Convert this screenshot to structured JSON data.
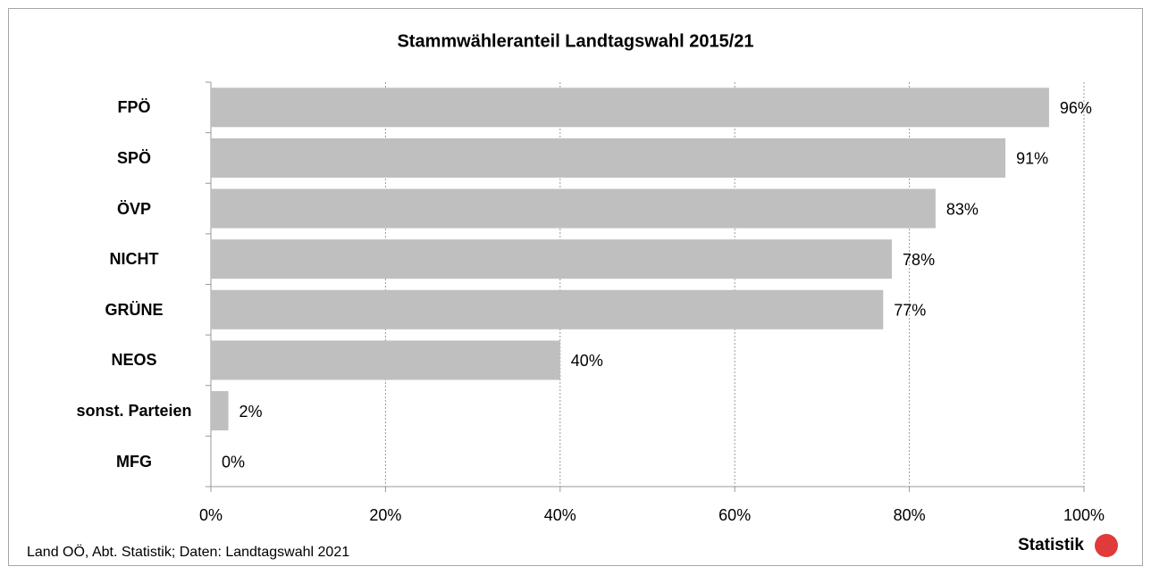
{
  "chart_data": {
    "type": "bar",
    "orientation": "horizontal",
    "title": "Stammwähleranteil Landtagswahl 2015/21",
    "categories": [
      "FPÖ",
      "SPÖ",
      "ÖVP",
      "NICHT",
      "GRÜNE",
      "NEOS",
      "sonst. Parteien",
      "MFG"
    ],
    "values": [
      96,
      91,
      83,
      78,
      77,
      40,
      2,
      0
    ],
    "value_labels": [
      "96%",
      "91%",
      "83%",
      "78%",
      "77%",
      "40%",
      "2%",
      "0%"
    ],
    "color": "#bfbfbf",
    "xlim": [
      0,
      100
    ],
    "xticks": [
      {
        "value": 0,
        "label": "0%"
      },
      {
        "value": 20,
        "label": "20%"
      },
      {
        "value": 40,
        "label": "40%"
      },
      {
        "value": 60,
        "label": "60%"
      },
      {
        "value": 80,
        "label": "80%"
      },
      {
        "value": 100,
        "label": "100%"
      }
    ],
    "grid": true,
    "source": "Land OÖ, Abt. Statistik; Daten: Landtagswahl 2021",
    "logo": "Statistik"
  }
}
